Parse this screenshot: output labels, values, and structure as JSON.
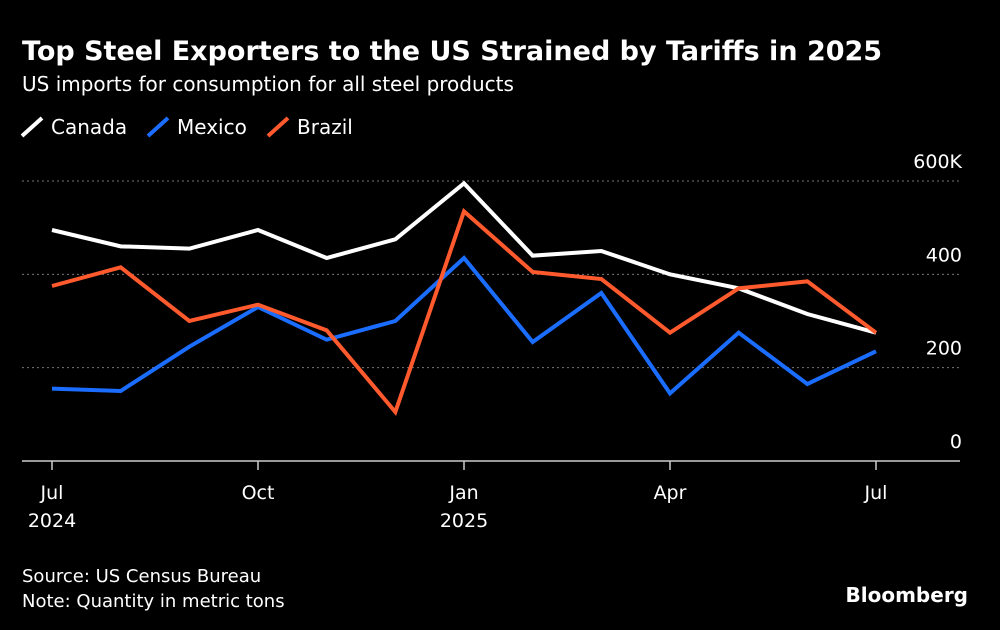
{
  "chart_data": {
    "type": "line",
    "title": "Top Steel Exporters to the US Strained by Tariffs in 2025",
    "subtitle": "US imports for consumption for all steel products",
    "categories": [
      "Jul",
      null,
      null,
      "Oct",
      null,
      null,
      "Jan",
      null,
      null,
      "Apr",
      null,
      null,
      "Jul"
    ],
    "year_labels": [
      "2024",
      null,
      null,
      null,
      null,
      null,
      "2025",
      null,
      null,
      null,
      null,
      null,
      null
    ],
    "series": [
      {
        "name": "Canada",
        "color": "#ffffff",
        "values": [
          495,
          460,
          455,
          495,
          435,
          475,
          595,
          440,
          450,
          400,
          370,
          315,
          275
        ]
      },
      {
        "name": "Mexico",
        "color": "#1a6dff",
        "values": [
          155,
          150,
          245,
          330,
          260,
          300,
          435,
          255,
          360,
          145,
          275,
          165,
          235
        ]
      },
      {
        "name": "Brazil",
        "color": "#ff5a2d",
        "values": [
          375,
          415,
          300,
          335,
          280,
          105,
          535,
          405,
          390,
          275,
          370,
          385,
          275
        ]
      }
    ],
    "ylim": [
      0,
      600
    ],
    "yticks": [
      0,
      200,
      400,
      {
        "value": 600,
        "label": "600K"
      }
    ],
    "grid": true,
    "source": "Source: US Census Bureau",
    "note": "Note: Quantity in metric tons",
    "brand": "Bloomberg"
  }
}
